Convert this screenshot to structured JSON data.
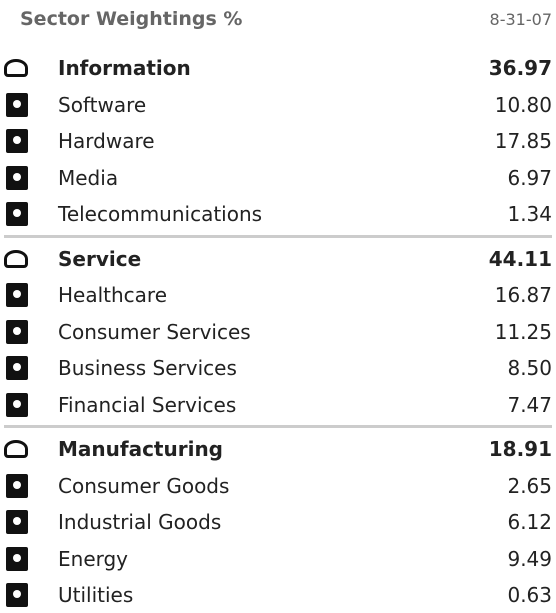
{
  "header": {
    "title": "Sector Weightings %",
    "date": "8-31-07"
  },
  "groups": [
    {
      "name": "Information",
      "value": "36.97",
      "items": [
        {
          "name": "Software",
          "value": "10.80"
        },
        {
          "name": "Hardware",
          "value": "17.85"
        },
        {
          "name": "Media",
          "value": "6.97"
        },
        {
          "name": "Telecommunications",
          "value": "1.34"
        }
      ]
    },
    {
      "name": "Service",
      "value": "44.11",
      "items": [
        {
          "name": "Healthcare",
          "value": "16.87"
        },
        {
          "name": "Consumer Services",
          "value": "11.25"
        },
        {
          "name": "Business Services",
          "value": "8.50"
        },
        {
          "name": "Financial Services",
          "value": "7.47"
        }
      ]
    },
    {
      "name": "Manufacturing",
      "value": "18.91",
      "items": [
        {
          "name": "Consumer Goods",
          "value": "2.65"
        },
        {
          "name": "Industrial Goods",
          "value": "6.12"
        },
        {
          "name": "Energy",
          "value": "9.49"
        },
        {
          "name": "Utilities",
          "value": "0.63"
        }
      ]
    }
  ]
}
